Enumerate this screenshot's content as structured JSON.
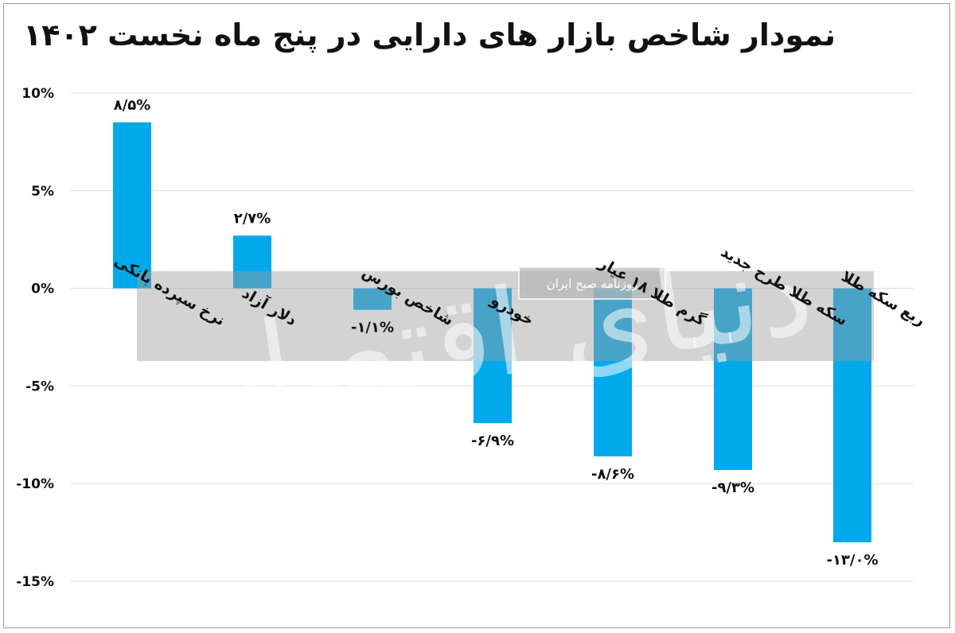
{
  "chart_data": {
    "type": "bar",
    "title": "نمودار شاخص بازار های دارایی در پنج ماه نخست ۱۴۰۲",
    "categories": [
      "نرخ سپرده بانکی",
      "دلار آزاد",
      "شاخص بورس",
      "خودرو",
      "گرم طلا ۱۸ عیار",
      "سکه طلا طرح جدید",
      "ربع سکه طلا"
    ],
    "values": [
      8.5,
      2.7,
      -1.1,
      -6.9,
      -8.6,
      -9.3,
      -13.0
    ],
    "value_labels": [
      "۸/۵%",
      "۲/۷%",
      "-۱/۱%",
      "-۶/۹%",
      "-۸/۶%",
      "-۹/۳%",
      "-۱۳/۰%"
    ],
    "ylim": [
      -15,
      10
    ],
    "yticks": [
      10,
      5,
      0,
      -5,
      -10,
      -15
    ],
    "ytick_labels": [
      "10%",
      "5%",
      "0%",
      "-5%",
      "-10%",
      "-15%"
    ],
    "grid": true,
    "bar_color": "#00a9ec",
    "xlabel": "",
    "ylabel": ""
  },
  "watermark": {
    "caption": "روزنامه صبح ایران",
    "brand": "دنیای اقتصاد"
  }
}
